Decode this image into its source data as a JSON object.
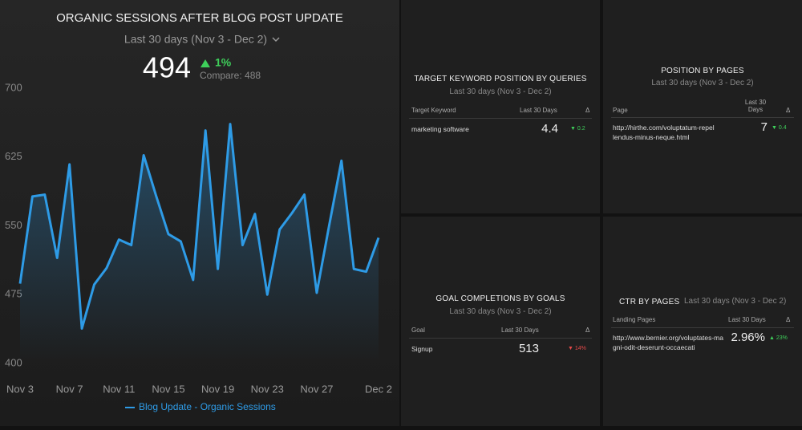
{
  "chart_data": {
    "type": "line",
    "title": "ORGANIC SESSIONS AFTER BLOG POST UPDATE",
    "subtitle": "Last 30 days (Nov 3 - Dec 2)",
    "summary": {
      "value": "494",
      "change": "1%",
      "compare": "Compare: 488"
    },
    "categories": [
      "Nov 3",
      null,
      null,
      null,
      "Nov 7",
      null,
      null,
      null,
      "Nov 11",
      null,
      null,
      null,
      "Nov 15",
      null,
      null,
      null,
      "Nov 19",
      null,
      null,
      null,
      "Nov 23",
      null,
      null,
      null,
      "Nov 27",
      null,
      null,
      null,
      null,
      "Dec 2"
    ],
    "series": [
      {
        "name": "Blog Update - Organic Sessions",
        "color": "#2e9be6",
        "values": [
          487,
          582,
          584,
          515,
          617,
          438,
          486,
          504,
          535,
          529,
          627,
          583,
          541,
          533,
          491,
          654,
          503,
          661,
          529,
          563,
          475,
          546,
          564,
          584,
          477,
          550,
          621,
          503,
          500,
          537
        ]
      }
    ],
    "ylim": [
      400,
      700
    ],
    "yticks": [
      400,
      475,
      550,
      625,
      700
    ],
    "grid": false
  },
  "widgets": [
    {
      "title": "TARGET KEYWORD POSITION BY QUERIES",
      "period": "Last 30 days (Nov 3 - Dec 2)",
      "columns": [
        "Target Keyword",
        "Last 30 Days",
        "Δ"
      ],
      "row": [
        "marketing software",
        "4.4",
        "0.2"
      ]
    },
    {
      "title": "POSITION BY PAGES",
      "period": "Last 30 days (Nov 3 - Dec 2)",
      "columns": [
        "Page",
        "Last 30 Days",
        "Δ"
      ],
      "row": [
        "http://hirthe.com/voluptatum-repellendus-minus-neque.html",
        "7",
        "0.4"
      ]
    },
    {
      "title": "GOAL COMPLETIONS BY GOALS",
      "period": "Last 30 days (Nov 3 - Dec 2)",
      "columns": [
        "Goal",
        "Last 30 Days",
        "Δ"
      ],
      "row": [
        "Signup",
        "513",
        "14%"
      ]
    },
    {
      "title": "CTR BY PAGES",
      "period": "Last 30 days (Nov 3 - Dec 2)",
      "columns": [
        "Landing Pages",
        "Last 30 Days",
        "Δ"
      ],
      "row": [
        "http://www.bernier.org/voluptates-magni-odit-deserunt-occaecati",
        "2.96%",
        "23%"
      ]
    }
  ]
}
